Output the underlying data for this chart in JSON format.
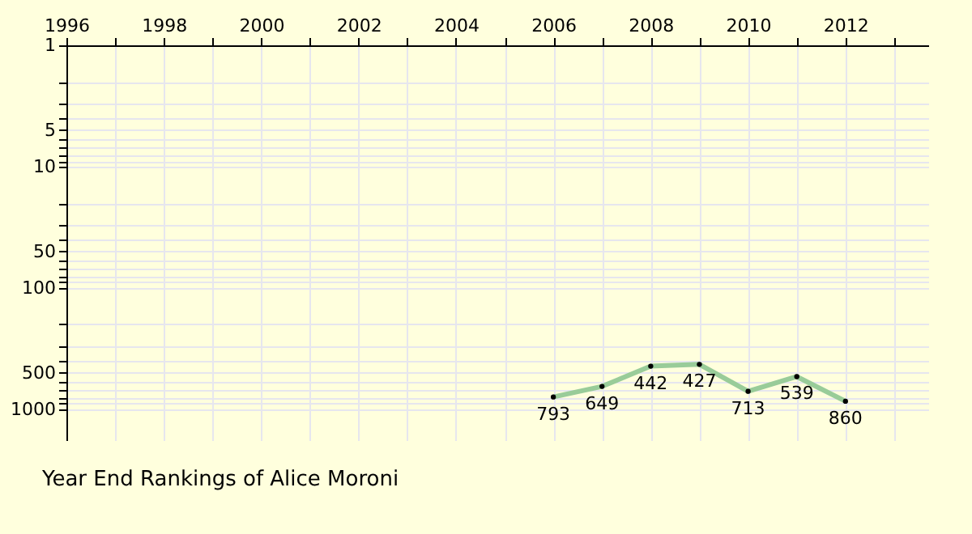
{
  "chart_data": {
    "type": "line",
    "title": "Year End Rankings of Alice Moroni",
    "x": [
      2006,
      2007,
      2008,
      2009,
      2010,
      2011,
      2012
    ],
    "series": [
      {
        "color": "#99cc99",
        "values": [
          793,
          649,
          442,
          427,
          713,
          539,
          860
        ]
      }
    ],
    "data_labels": true,
    "marker": "circle",
    "line_style": "solid",
    "grid": true,
    "log": "y",
    "xlim": [
      1996,
      2013.7
    ],
    "xticks": [
      1996,
      {
        "value": 1997,
        "label": null
      },
      1998,
      {
        "value": 1999,
        "label": null
      },
      2000,
      {
        "value": 2001,
        "label": null
      },
      2002,
      {
        "value": 2003,
        "label": null
      },
      2004,
      {
        "value": 2005,
        "label": null
      },
      2006,
      {
        "value": 2007,
        "label": null
      },
      2008,
      {
        "value": 2009,
        "label": null
      },
      2010,
      {
        "value": 2011,
        "label": null
      },
      2012,
      {
        "value": 2013,
        "label": null
      }
    ],
    "ylim": [
      1800,
      1
    ],
    "yticks": [
      1,
      {
        "value": 2,
        "label": null
      },
      {
        "value": 3,
        "label": null
      },
      {
        "value": 4,
        "label": null
      },
      5,
      {
        "value": 6,
        "label": null
      },
      {
        "value": 7,
        "label": null
      },
      {
        "value": 8,
        "label": null
      },
      {
        "value": 9,
        "label": null
      },
      10,
      {
        "value": 20,
        "label": null
      },
      {
        "value": 30,
        "label": null
      },
      {
        "value": 40,
        "label": null
      },
      50,
      {
        "value": 60,
        "label": null
      },
      {
        "value": 70,
        "label": null
      },
      {
        "value": 80,
        "label": null
      },
      {
        "value": 90,
        "label": null
      },
      100,
      {
        "value": 200,
        "label": null
      },
      {
        "value": 300,
        "label": null
      },
      {
        "value": 400,
        "label": null
      },
      500,
      {
        "value": 600,
        "label": null
      },
      {
        "value": 700,
        "label": null
      },
      {
        "value": 800,
        "label": null
      },
      {
        "value": 900,
        "label": null
      },
      1000
    ]
  }
}
